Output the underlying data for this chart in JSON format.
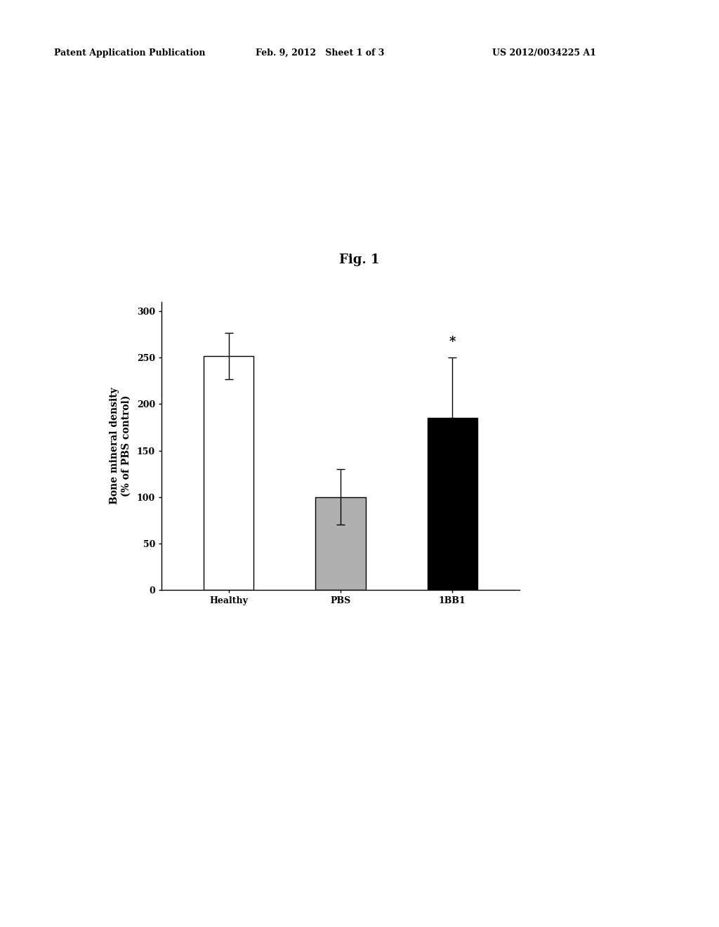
{
  "categories": [
    "Healthy",
    "PBS",
    "1BB1"
  ],
  "values": [
    252,
    100,
    185
  ],
  "errors": [
    25,
    30,
    65
  ],
  "bar_colors": [
    "#ffffff",
    "#b0b0b0",
    "#000000"
  ],
  "bar_edgecolors": [
    "#000000",
    "#000000",
    "#000000"
  ],
  "ylabel": "Bone mineral density\n(% of PBS control)",
  "ylim": [
    0,
    310
  ],
  "yticks": [
    0,
    50,
    100,
    150,
    200,
    250,
    300
  ],
  "fig_title": "Fig. 1",
  "patent_header": "Patent Application Publication",
  "patent_date": "Feb. 9, 2012   Sheet 1 of 3",
  "patent_number": "US 2012/0034225 A1",
  "significance_label": "*",
  "background_color": "#ffffff",
  "title_fontsize": 13,
  "ylabel_fontsize": 10,
  "tick_fontsize": 9,
  "header_fontsize": 9,
  "bar_width": 0.45
}
